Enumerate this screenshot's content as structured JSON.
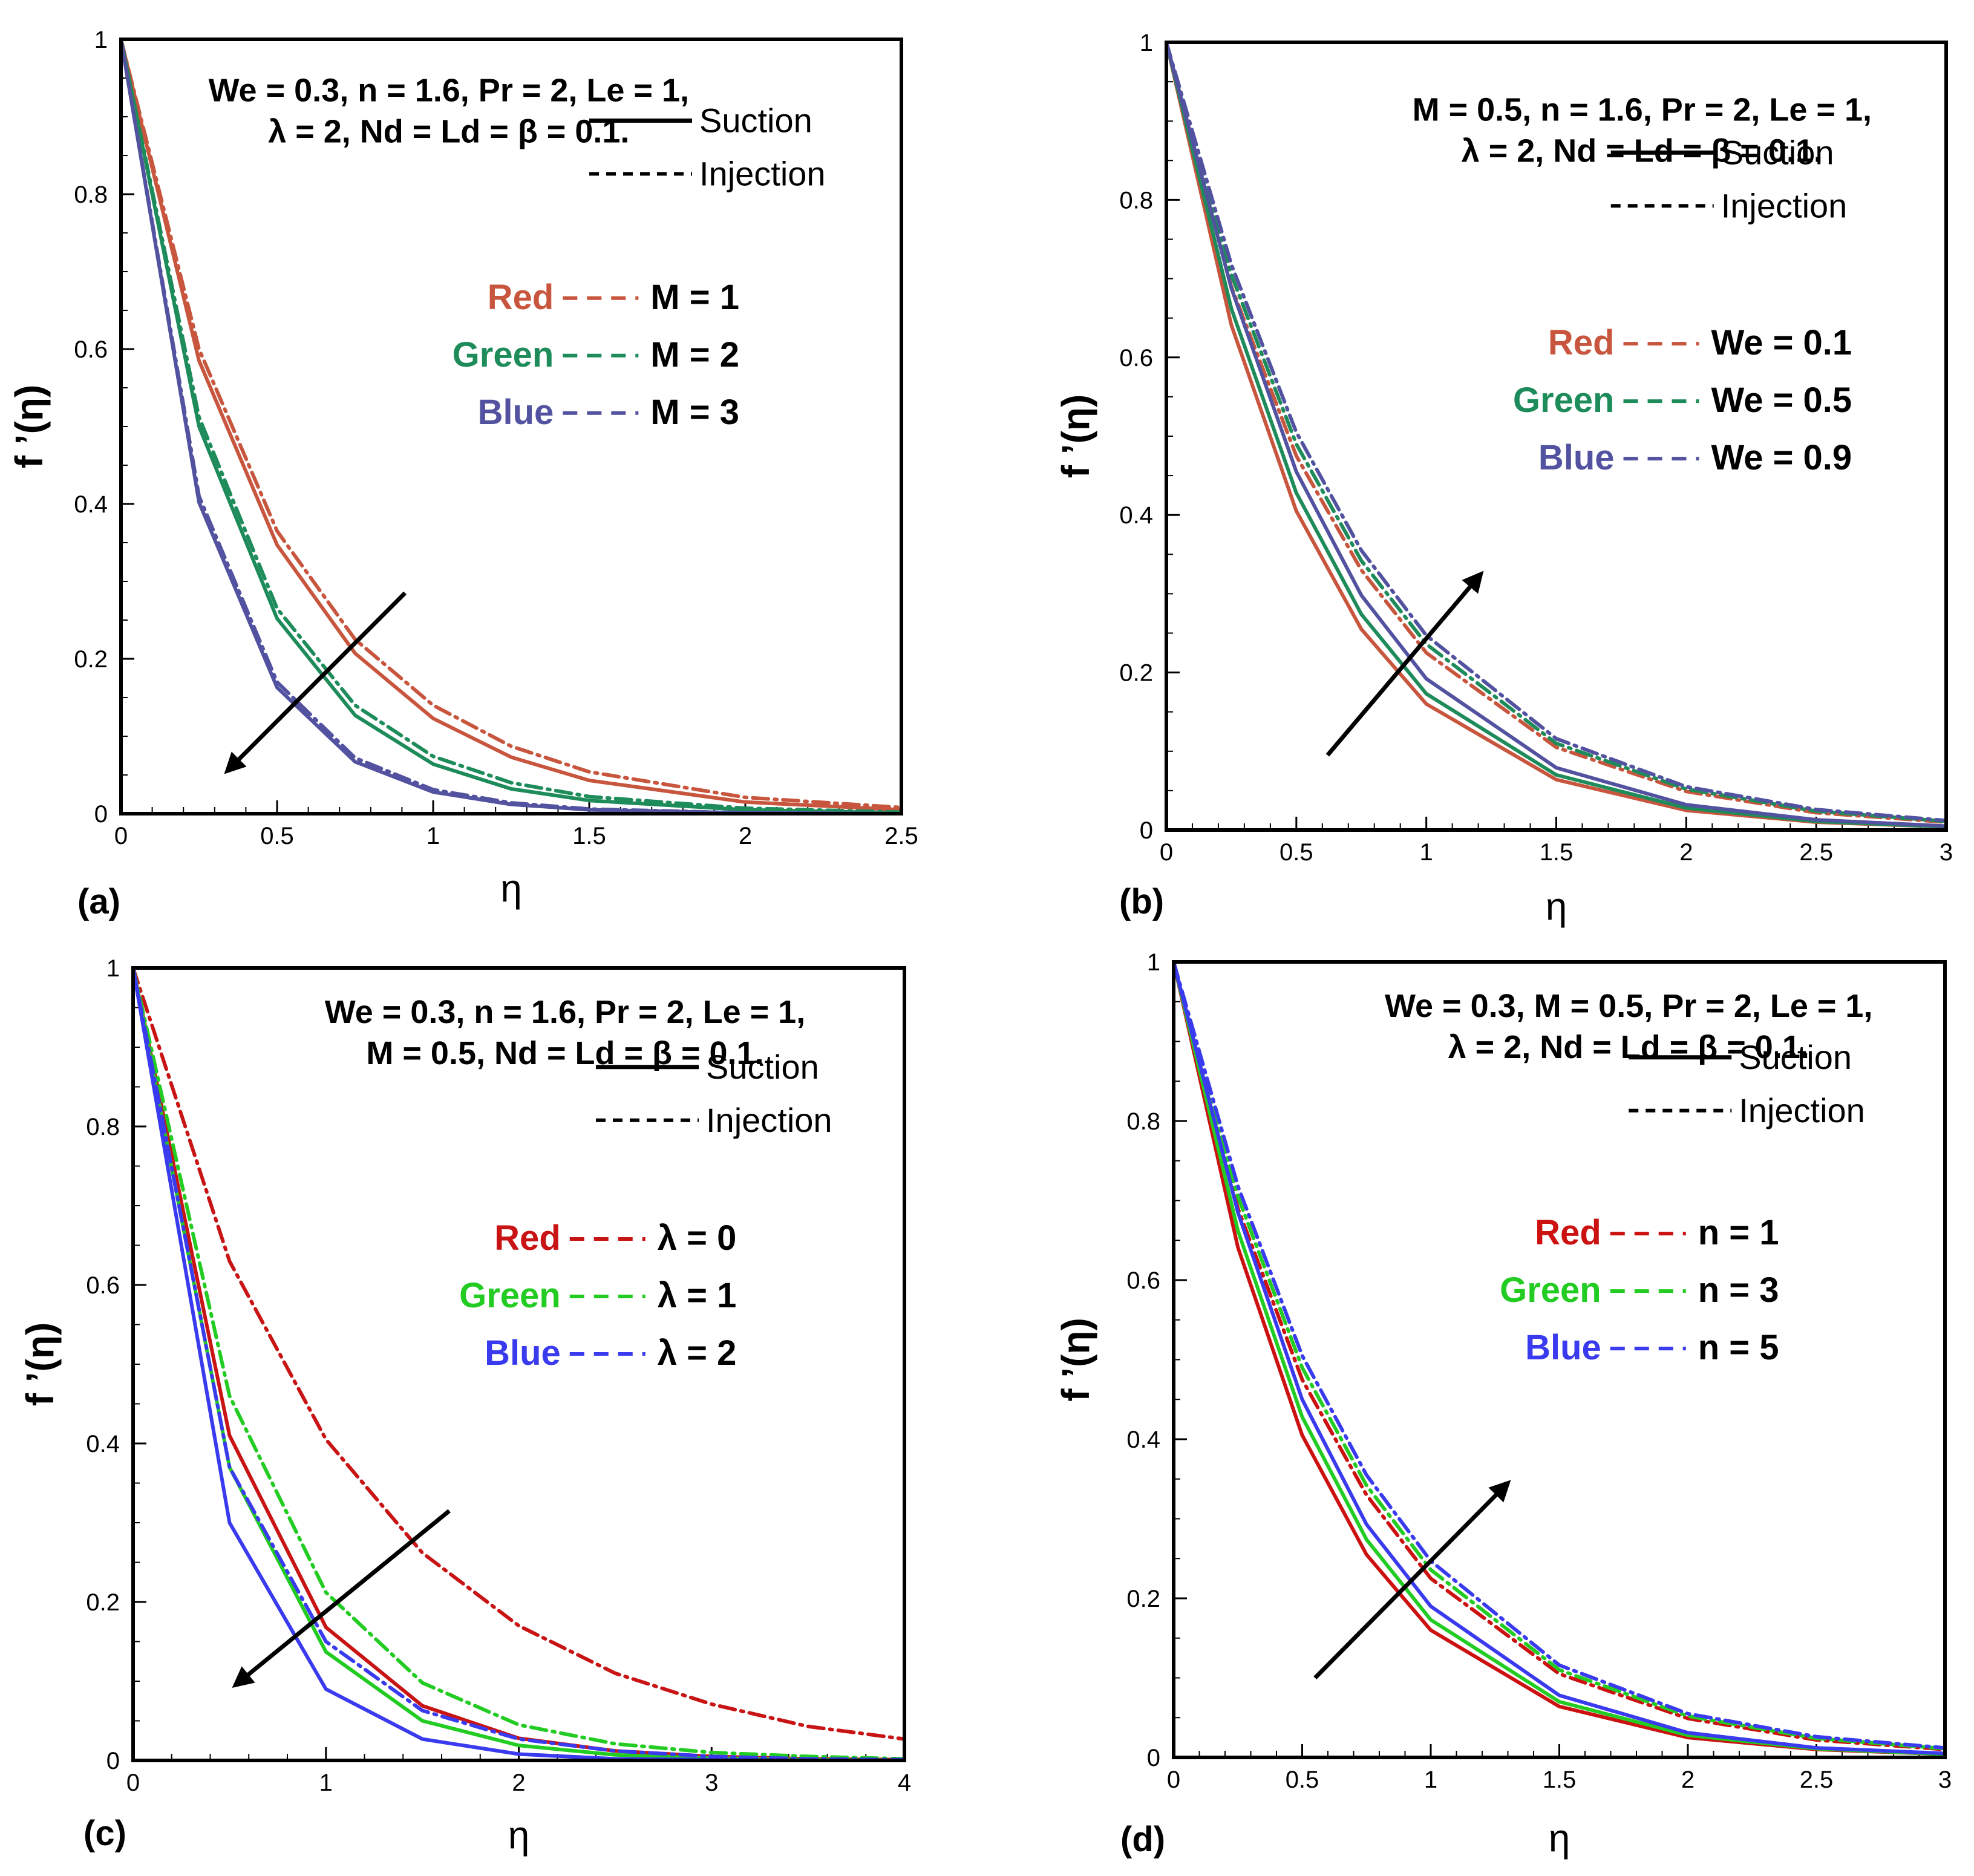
{
  "figure": {
    "line_styles": {
      "solid": "Suction",
      "dashdot": "Injection"
    }
  },
  "chart_data": [
    {
      "id": "a",
      "type": "line",
      "panel_label": "(a)",
      "xlabel": "η",
      "ylabel": "f ’(η)",
      "xlim": [
        0,
        2.5
      ],
      "ylim": [
        0,
        1
      ],
      "xticks": [
        0,
        0.5,
        1,
        1.5,
        2,
        2.5
      ],
      "xtick_labels": [
        "0",
        "0.5",
        "1",
        "1.5",
        "2",
        "2.5"
      ],
      "yticks": [
        0,
        0.2,
        0.4,
        0.6,
        0.8,
        1
      ],
      "ytick_labels": [
        "0",
        "0.2",
        "0.4",
        "0.6",
        "0.8",
        "1"
      ],
      "params": [
        "We = 0.3, n = 1.6, Pr = 2,  Le = 1,",
        "λ = 2, Nd = Ld = β = 0.1."
      ],
      "legend_styles": [
        "Suction",
        "Injection"
      ],
      "legend_params": [
        {
          "color_name": "Red",
          "label": "M = 1",
          "color": "#c8553d"
        },
        {
          "color_name": "Green",
          "label": "M = 2",
          "color": "#1e8c5a"
        },
        {
          "color_name": "Blue",
          "label": "M = 3",
          "color": "#5252a0"
        }
      ],
      "arrow": {
        "from": [
          0.91,
          0.285
        ],
        "to": [
          0.34,
          0.055
        ],
        "meaning": "increasing M"
      },
      "series": [
        {
          "name": "M = 1 Suction",
          "color": "#c8553d",
          "style": "solid",
          "x": [
            0,
            0.25,
            0.5,
            0.75,
            1.0,
            1.25,
            1.5,
            2.0,
            2.5
          ],
          "y": [
            1.0,
            0.585,
            0.347,
            0.207,
            0.123,
            0.073,
            0.043,
            0.015,
            0.005
          ]
        },
        {
          "name": "M = 1 Injection",
          "color": "#c8553d",
          "style": "dashdot",
          "x": [
            0,
            0.25,
            0.5,
            0.75,
            1.0,
            1.25,
            1.5,
            2.0,
            2.5
          ],
          "y": [
            1.0,
            0.6,
            0.365,
            0.225,
            0.14,
            0.087,
            0.054,
            0.021,
            0.008
          ]
        },
        {
          "name": "M = 2 Suction",
          "color": "#1e8c5a",
          "style": "solid",
          "x": [
            0,
            0.25,
            0.5,
            0.75,
            1.0,
            1.25,
            1.5,
            2.0,
            2.5
          ],
          "y": [
            1.0,
            0.5,
            0.252,
            0.127,
            0.064,
            0.032,
            0.017,
            0.005,
            0.001
          ]
        },
        {
          "name": "M = 2 Injection",
          "color": "#1e8c5a",
          "style": "dashdot",
          "x": [
            0,
            0.25,
            0.5,
            0.75,
            1.0,
            1.25,
            1.5,
            2.0,
            2.5
          ],
          "y": [
            1.0,
            0.512,
            0.265,
            0.14,
            0.074,
            0.04,
            0.022,
            0.007,
            0.002
          ]
        },
        {
          "name": "M = 3 Suction",
          "color": "#5252a0",
          "style": "solid",
          "x": [
            0,
            0.25,
            0.5,
            0.75,
            1.0,
            1.25,
            1.5,
            2.0,
            2.5
          ],
          "y": [
            1.0,
            0.402,
            0.163,
            0.067,
            0.028,
            0.012,
            0.005,
            0.001,
            0.0
          ]
        },
        {
          "name": "M = 3 Injection",
          "color": "#5252a0",
          "style": "dashdot",
          "x": [
            0,
            0.25,
            0.5,
            0.75,
            1.0,
            1.25,
            1.5,
            2.0,
            2.5
          ],
          "y": [
            1.0,
            0.41,
            0.17,
            0.072,
            0.031,
            0.014,
            0.006,
            0.001,
            0.0
          ]
        }
      ]
    },
    {
      "id": "b",
      "type": "line",
      "panel_label": "(b)",
      "xlabel": "η",
      "ylabel": "f ’(η)",
      "xlim": [
        0,
        3
      ],
      "ylim": [
        0,
        1
      ],
      "xticks": [
        0,
        0.5,
        1,
        1.5,
        2,
        2.5,
        3
      ],
      "xtick_labels": [
        "0",
        "0.5",
        "1",
        "1.5",
        "2",
        "2.5",
        "3"
      ],
      "yticks": [
        0,
        0.2,
        0.4,
        0.6,
        0.8,
        1
      ],
      "ytick_labels": [
        "0",
        "0.2",
        "0.4",
        "0.6",
        "0.8",
        "1"
      ],
      "params": [
        "M = 0.5, n = 1.6, Pr = 2,  Le = 1,",
        "λ = 2, Nd = Ld = β = 0.1."
      ],
      "legend_styles": [
        "Suction",
        "Injection"
      ],
      "legend_params": [
        {
          "color_name": "Red",
          "label": "We = 0.1",
          "color": "#c8553d"
        },
        {
          "color_name": "Green",
          "label": "We = 0.5",
          "color": "#1e8c5a"
        },
        {
          "color_name": "Blue",
          "label": "We = 0.9",
          "color": "#5252a0"
        }
      ],
      "arrow": {
        "from": [
          0.62,
          0.095
        ],
        "to": [
          1.21,
          0.325
        ],
        "meaning": "increasing We"
      },
      "series": [
        {
          "name": "We = 0.1 Suction",
          "color": "#c8553d",
          "style": "solid",
          "x": [
            0,
            0.25,
            0.5,
            0.75,
            1.0,
            1.5,
            2.0,
            2.5,
            3.0
          ],
          "y": [
            1.0,
            0.641,
            0.405,
            0.255,
            0.16,
            0.064,
            0.025,
            0.01,
            0.004
          ]
        },
        {
          "name": "We = 0.1 Injection",
          "color": "#c8553d",
          "style": "dashdot",
          "x": [
            0,
            0.25,
            0.5,
            0.75,
            1.0,
            1.5,
            2.0,
            2.5,
            3.0
          ],
          "y": [
            1.0,
            0.69,
            0.475,
            0.33,
            0.225,
            0.105,
            0.049,
            0.022,
            0.01
          ]
        },
        {
          "name": "We = 0.5 Suction",
          "color": "#1e8c5a",
          "style": "solid",
          "x": [
            0,
            0.25,
            0.5,
            0.75,
            1.0,
            1.5,
            2.0,
            2.5,
            3.0
          ],
          "y": [
            1.0,
            0.662,
            0.428,
            0.274,
            0.173,
            0.07,
            0.028,
            0.011,
            0.004
          ]
        },
        {
          "name": "We = 0.5 Injection",
          "color": "#1e8c5a",
          "style": "dashdot",
          "x": [
            0,
            0.25,
            0.5,
            0.75,
            1.0,
            1.5,
            2.0,
            2.5,
            3.0
          ],
          "y": [
            1.0,
            0.705,
            0.49,
            0.342,
            0.236,
            0.11,
            0.052,
            0.024,
            0.011
          ]
        },
        {
          "name": "We = 0.9 Suction",
          "color": "#5252a0",
          "style": "solid",
          "x": [
            0,
            0.25,
            0.5,
            0.75,
            1.0,
            1.5,
            2.0,
            2.5,
            3.0
          ],
          "y": [
            1.0,
            0.688,
            0.455,
            0.298,
            0.192,
            0.079,
            0.032,
            0.013,
            0.005
          ]
        },
        {
          "name": "We = 0.9 Injection",
          "color": "#5252a0",
          "style": "dashdot",
          "x": [
            0,
            0.25,
            0.5,
            0.75,
            1.0,
            1.5,
            2.0,
            2.5,
            3.0
          ],
          "y": [
            1.0,
            0.718,
            0.505,
            0.355,
            0.247,
            0.116,
            0.055,
            0.026,
            0.012
          ]
        }
      ]
    },
    {
      "id": "c",
      "type": "line",
      "panel_label": "(c)",
      "xlabel": "η",
      "ylabel": "f ’(η)",
      "xlim": [
        0,
        4
      ],
      "ylim": [
        0,
        1
      ],
      "xticks": [
        0,
        1,
        2,
        3,
        4
      ],
      "xtick_labels": [
        "0",
        "1",
        "2",
        "3",
        "4"
      ],
      "yticks": [
        0,
        0.2,
        0.4,
        0.6,
        0.8,
        1
      ],
      "ytick_labels": [
        "0",
        "0.2",
        "0.4",
        "0.6",
        "0.8",
        "1"
      ],
      "params": [
        "We = 0.3, n = 1.6, Pr = 2,  Le = 1,",
        "M = 0.5, Nd = Ld = β = 0.1."
      ],
      "legend_styles": [
        "Suction",
        "Injection"
      ],
      "legend_params": [
        {
          "color_name": "Red",
          "label": "λ = 0",
          "color": "#c81414"
        },
        {
          "color_name": "Green",
          "label": "λ = 1",
          "color": "#22cc22"
        },
        {
          "color_name": "Blue",
          "label": "λ = 2",
          "color": "#3a3aee"
        }
      ],
      "arrow": {
        "from": [
          1.64,
          0.315
        ],
        "to": [
          0.53,
          0.095
        ],
        "meaning": "increasing λ"
      },
      "series": [
        {
          "name": "λ = 0 Suction",
          "color": "#c81414",
          "style": "solid",
          "x": [
            0,
            0.5,
            1.0,
            1.5,
            2.0,
            2.5,
            3.0,
            3.5,
            4.0
          ],
          "y": [
            1.0,
            0.41,
            0.168,
            0.069,
            0.028,
            0.012,
            0.005,
            0.002,
            0.001
          ]
        },
        {
          "name": "λ = 0 Injection",
          "color": "#c81414",
          "style": "dashdot",
          "x": [
            0,
            0.5,
            1.0,
            1.5,
            2.0,
            2.5,
            3.0,
            3.5,
            4.0
          ],
          "y": [
            1.0,
            0.63,
            0.405,
            0.262,
            0.17,
            0.11,
            0.071,
            0.043,
            0.027
          ]
        },
        {
          "name": "λ = 1 Suction",
          "color": "#22cc22",
          "style": "solid",
          "x": [
            0,
            0.5,
            1.0,
            1.5,
            2.0,
            2.5,
            3.0,
            3.5,
            4.0
          ],
          "y": [
            1.0,
            0.37,
            0.137,
            0.05,
            0.019,
            0.007,
            0.003,
            0.001,
            0.0
          ]
        },
        {
          "name": "λ = 1 Injection",
          "color": "#22cc22",
          "style": "dashdot",
          "x": [
            0,
            0.5,
            1.0,
            1.5,
            2.0,
            2.5,
            3.0,
            3.5,
            4.0
          ],
          "y": [
            1.0,
            0.46,
            0.212,
            0.098,
            0.045,
            0.021,
            0.01,
            0.005,
            0.002
          ]
        },
        {
          "name": "λ = 2 Suction",
          "color": "#3a3aee",
          "style": "solid",
          "x": [
            0,
            0.5,
            1.0,
            1.5,
            2.0,
            2.5,
            3.0,
            3.5,
            4.0
          ],
          "y": [
            1.0,
            0.3,
            0.09,
            0.027,
            0.008,
            0.002,
            0.001,
            0.0,
            0.0
          ]
        },
        {
          "name": "λ = 2 Injection",
          "color": "#3a3aee",
          "style": "dashdot",
          "x": [
            0,
            0.5,
            1.0,
            1.5,
            2.0,
            2.5,
            3.0,
            3.5,
            4.0
          ],
          "y": [
            1.0,
            0.37,
            0.15,
            0.063,
            0.027,
            0.012,
            0.005,
            0.002,
            0.001
          ]
        }
      ]
    },
    {
      "id": "d",
      "type": "line",
      "panel_label": "(d)",
      "xlabel": "η",
      "ylabel": "f ’(η)",
      "xlim": [
        0,
        3
      ],
      "ylim": [
        0,
        1
      ],
      "xticks": [
        0,
        0.5,
        1,
        1.5,
        2,
        2.5,
        3
      ],
      "xtick_labels": [
        "0",
        "0.5",
        "1",
        "1.5",
        "2",
        "2.5",
        "3"
      ],
      "yticks": [
        0,
        0.2,
        0.4,
        0.6,
        0.8,
        1
      ],
      "ytick_labels": [
        "0",
        "0.2",
        "0.4",
        "0.6",
        "0.8",
        "1"
      ],
      "params": [
        "We = 0.3, M = 0.5, Pr = 2,  Le = 1,",
        "λ = 2, Nd = Ld = β = 0.1."
      ],
      "legend_styles": [
        "Suction",
        "Injection"
      ],
      "legend_params": [
        {
          "color_name": "Red",
          "label": "n = 1",
          "color": "#cc1111"
        },
        {
          "color_name": "Green",
          "label": "n = 3",
          "color": "#22cc22"
        },
        {
          "color_name": "Blue",
          "label": "n = 5",
          "color": "#3a3aee"
        }
      ],
      "arrow": {
        "from": [
          0.55,
          0.1
        ],
        "to": [
          1.3,
          0.345
        ],
        "meaning": "increasing n"
      },
      "series": [
        {
          "name": "n = 1 Suction",
          "color": "#cc1111",
          "style": "solid",
          "x": [
            0,
            0.25,
            0.5,
            0.75,
            1.0,
            1.5,
            2.0,
            2.5,
            3.0
          ],
          "y": [
            1.0,
            0.641,
            0.405,
            0.255,
            0.16,
            0.064,
            0.025,
            0.01,
            0.004
          ]
        },
        {
          "name": "n = 1 Injection",
          "color": "#cc1111",
          "style": "dashdot",
          "x": [
            0,
            0.25,
            0.5,
            0.75,
            1.0,
            1.5,
            2.0,
            2.5,
            3.0
          ],
          "y": [
            1.0,
            0.69,
            0.475,
            0.33,
            0.225,
            0.105,
            0.049,
            0.022,
            0.01
          ]
        },
        {
          "name": "n = 3 Suction",
          "color": "#22cc22",
          "style": "solid",
          "x": [
            0,
            0.25,
            0.5,
            0.75,
            1.0,
            1.5,
            2.0,
            2.5,
            3.0
          ],
          "y": [
            1.0,
            0.662,
            0.428,
            0.274,
            0.173,
            0.07,
            0.028,
            0.011,
            0.004
          ]
        },
        {
          "name": "n = 3 Injection",
          "color": "#22cc22",
          "style": "dashdot",
          "x": [
            0,
            0.25,
            0.5,
            0.75,
            1.0,
            1.5,
            2.0,
            2.5,
            3.0
          ],
          "y": [
            1.0,
            0.705,
            0.49,
            0.342,
            0.236,
            0.11,
            0.052,
            0.024,
            0.011
          ]
        },
        {
          "name": "n = 5 Suction",
          "color": "#3a3aee",
          "style": "solid",
          "x": [
            0,
            0.25,
            0.5,
            0.75,
            1.0,
            1.5,
            2.0,
            2.5,
            3.0
          ],
          "y": [
            1.0,
            0.685,
            0.45,
            0.293,
            0.19,
            0.078,
            0.031,
            0.012,
            0.005
          ]
        },
        {
          "name": "n = 5 Injection",
          "color": "#3a3aee",
          "style": "dashdot",
          "x": [
            0,
            0.25,
            0.5,
            0.75,
            1.0,
            1.5,
            2.0,
            2.5,
            3.0
          ],
          "y": [
            1.0,
            0.718,
            0.505,
            0.355,
            0.247,
            0.116,
            0.055,
            0.026,
            0.012
          ]
        }
      ]
    }
  ]
}
